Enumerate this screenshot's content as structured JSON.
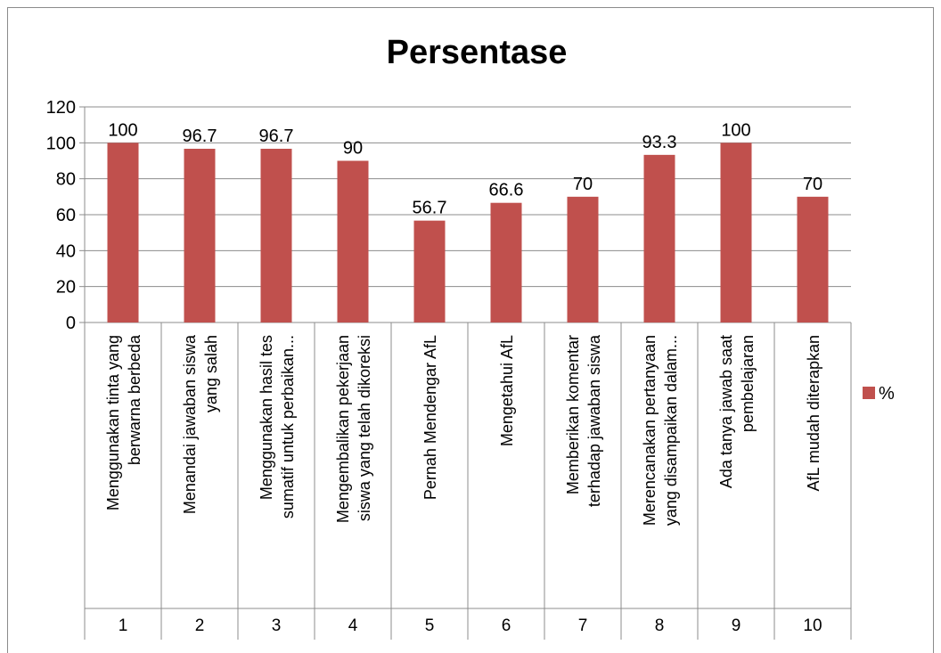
{
  "chart_data": {
    "type": "bar",
    "title": "Persentase",
    "ylim": [
      0,
      120
    ],
    "yticks": [
      0,
      20,
      40,
      60,
      80,
      100,
      120
    ],
    "grid": true,
    "legend": "right",
    "series": [
      {
        "name": "%",
        "color": "#c0504d",
        "values": [
          100,
          96.7,
          96.7,
          90,
          56.7,
          66.6,
          70,
          93.3,
          100,
          70
        ],
        "labels": [
          "100",
          "96.7",
          "96.7",
          "90",
          "56.7",
          "66.6",
          "70",
          "93.3",
          "100",
          "70"
        ]
      }
    ],
    "categories": [
      {
        "lines": [
          "Menggunakan tinta yang",
          "berwarna berbeda"
        ],
        "number": "1"
      },
      {
        "lines": [
          "Menandai jawaban siswa",
          "yang salah"
        ],
        "number": "2"
      },
      {
        "lines": [
          "Menggunakan hasil tes",
          "sumatif untuk perbaikan..."
        ],
        "number": "3"
      },
      {
        "lines": [
          "Mengembalikan pekerjaan",
          "siswa yang telah dikoreksi"
        ],
        "number": "4"
      },
      {
        "lines": [
          "Pernah Mendengar  AfL"
        ],
        "number": "5"
      },
      {
        "lines": [
          "Mengetahui AfL"
        ],
        "number": "6"
      },
      {
        "lines": [
          "Memberikan komentar",
          "terhadap jawaban siswa"
        ],
        "number": "7"
      },
      {
        "lines": [
          "Merencanakan pertanyaan",
          "yang disampaikan dalam..."
        ],
        "number": "8"
      },
      {
        "lines": [
          "Ada tanya jawab saat",
          "pembelajaran"
        ],
        "number": "9"
      },
      {
        "lines": [
          "AfL mudah diterapkan"
        ],
        "number": "10"
      }
    ]
  }
}
